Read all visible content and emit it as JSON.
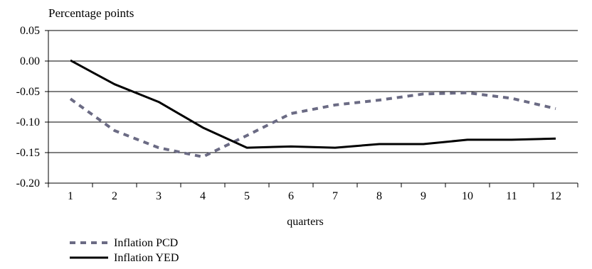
{
  "chart_data": {
    "type": "line",
    "ylabel": "Percentage points",
    "xlabel": "quarters",
    "categories": [
      "1",
      "2",
      "3",
      "4",
      "5",
      "6",
      "7",
      "8",
      "9",
      "10",
      "11",
      "12"
    ],
    "ylim": [
      -0.2,
      0.05
    ],
    "y_ticks": [
      "0.05",
      "0.00",
      "-0.05",
      "-0.10",
      "-0.15",
      "-0.20"
    ],
    "grid": "horizontal",
    "legend_position": "bottom-left",
    "series": [
      {
        "name": "Inflation PCD",
        "style": "dashed",
        "color": "#6b6b84",
        "values": [
          -0.062,
          -0.114,
          -0.142,
          -0.157,
          -0.122,
          -0.086,
          -0.072,
          -0.064,
          -0.054,
          -0.052,
          -0.061,
          -0.078
        ]
      },
      {
        "name": "Inflation YED",
        "style": "solid",
        "color": "#000000",
        "values": [
          0.001,
          -0.038,
          -0.067,
          -0.109,
          -0.142,
          -0.14,
          -0.142,
          -0.136,
          -0.136,
          -0.129,
          -0.129,
          -0.127
        ]
      }
    ]
  }
}
